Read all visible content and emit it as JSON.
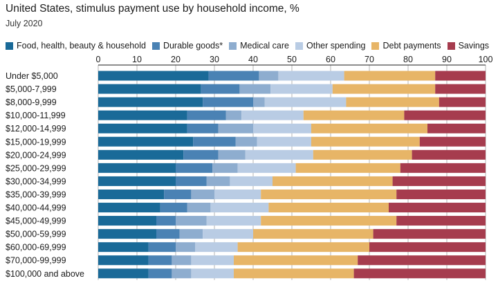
{
  "title": "United States, stimulus payment use by household income, %",
  "subtitle": "July 2020",
  "chart_data": {
    "type": "bar",
    "orientation": "horizontal",
    "stacked": true,
    "xlim": [
      0,
      100
    ],
    "xticks": [
      "0",
      "10",
      "20",
      "30",
      "40",
      "50",
      "60",
      "70",
      "80",
      "90",
      "100"
    ],
    "grid": true,
    "legend_position": "top",
    "categories": [
      "Under $5,000",
      "$5,000-7,999",
      "$8,000-9,999",
      "$10,000-11,999",
      "$12,000-14,999",
      "$15,000-19,999",
      "$20,000-24,999",
      "$25,000-29,999",
      "$30,000-34,999",
      "$35,000-39,999",
      "$40,000-44,999",
      "$45,000-49,999",
      "$50,000-59,999",
      "$60,000-69,999",
      "$70,000-99,999",
      "$100,000 and above"
    ],
    "series": [
      {
        "name": "Food, health, beauty & household",
        "color": "#1a6a98",
        "values": [
          28.5,
          26.5,
          27,
          23,
          23,
          24.5,
          22,
          20,
          20,
          17,
          16,
          15,
          15,
          13,
          13,
          13
        ]
      },
      {
        "name": "Durable goods*",
        "color": "#4a82b4",
        "values": [
          13,
          10,
          13,
          10,
          8,
          11,
          9,
          9.5,
          8,
          7,
          7,
          5,
          6,
          7,
          6,
          6
        ]
      },
      {
        "name": "Medical care",
        "color": "#8eadcf",
        "values": [
          5,
          8,
          3,
          4,
          9,
          5.5,
          7,
          6.5,
          6,
          6,
          6,
          8,
          6,
          5,
          5,
          5
        ]
      },
      {
        "name": "Other spending",
        "color": "#b9cce4",
        "values": [
          17,
          16,
          21,
          16,
          15,
          14,
          17.5,
          15,
          11,
          12,
          15,
          14,
          13,
          11,
          11,
          11
        ]
      },
      {
        "name": "Debt payments",
        "color": "#e7b567",
        "values": [
          23.5,
          26.5,
          24,
          26,
          30,
          28,
          25.5,
          27,
          31,
          35,
          31,
          35,
          31,
          34,
          32,
          31
        ]
      },
      {
        "name": "Savings",
        "color": "#a63c4e",
        "values": [
          13,
          13,
          12,
          21,
          15,
          17,
          19,
          22,
          24,
          23,
          25,
          23,
          29,
          30,
          33,
          34
        ]
      }
    ]
  }
}
